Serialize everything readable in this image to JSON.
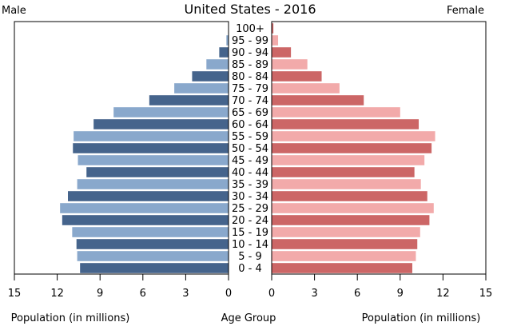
{
  "chart_data": {
    "type": "bar",
    "orientation": "horizontal",
    "layout": "population-pyramid",
    "title": "United States - 2016",
    "left_label": "Male",
    "right_label": "Female",
    "xlabel_left": "Population (in millions)",
    "xlabel_center": "Age Group",
    "xlabel_right": "Population (in millions)",
    "xlim": [
      0,
      15
    ],
    "xticks": [
      0,
      3,
      6,
      9,
      12,
      15
    ],
    "categories": [
      "100+",
      "95 - 99",
      "90 - 94",
      "85 - 89",
      "80 - 84",
      "75 - 79",
      "70 - 74",
      "65 - 69",
      "60 - 64",
      "55 - 59",
      "50 - 54",
      "45 - 49",
      "40 - 44",
      "35 - 39",
      "30 - 34",
      "25 - 29",
      "20 - 24",
      "15 - 19",
      "10 - 14",
      "5 - 9",
      "0 - 4"
    ],
    "series": [
      {
        "name": "Male",
        "values": [
          0.02,
          0.15,
          0.65,
          1.55,
          2.55,
          3.8,
          5.55,
          8.05,
          9.45,
          10.85,
          10.9,
          10.55,
          9.95,
          10.6,
          11.25,
          11.8,
          11.65,
          10.95,
          10.65,
          10.6,
          10.4
        ],
        "colors": [
          "#45648c",
          "#89a8cc"
        ]
      },
      {
        "name": "Female",
        "values": [
          0.12,
          0.45,
          1.35,
          2.5,
          3.5,
          4.75,
          6.45,
          9.0,
          10.3,
          11.45,
          11.2,
          10.7,
          10.0,
          10.45,
          10.9,
          11.35,
          11.05,
          10.4,
          10.2,
          10.1,
          9.85
        ],
        "colors": [
          "#cc6666",
          "#f2aaaa"
        ]
      }
    ]
  }
}
